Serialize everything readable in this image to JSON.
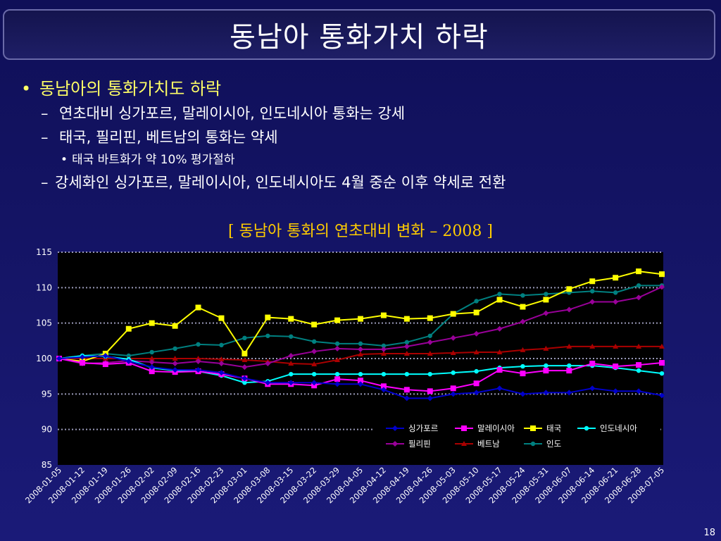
{
  "slide": {
    "title": "동남아 통화가치 하락",
    "bullet1": "동남아의 통화가치도 하락",
    "bullet1_marker": "•",
    "sub1": "연초대비 싱가포르, 말레이시아, 인도네시아 통화는 강세",
    "sub2": "태국, 필리핀, 베트남의 통화는 약세",
    "sub2_1": "태국 바트화가 약 10% 평가절하",
    "sub3": "강세화인 싱가포르, 말레이시아, 인도네시아도 4월 중순 이후 약세로 전환",
    "dash": "–",
    "dot": "•",
    "chart_caption": "[ 동남아 통화의 연초대비 변화 – 2008 ]",
    "page_number": "18"
  },
  "chart_data": {
    "type": "line",
    "categories": [
      "2008-01-05",
      "2008-01-12",
      "2008-01-19",
      "2008-01-26",
      "2008-02-02",
      "2008-02-09",
      "2008-02-16",
      "2008-02-23",
      "2008-03-01",
      "2008-03-08",
      "2008-03-15",
      "2008-03-22",
      "2008-03-29",
      "2008-04-05",
      "2008-04-12",
      "2008-04-19",
      "2008-04-26",
      "2008-05-03",
      "2008-05-10",
      "2008-05-17",
      "2008-05-24",
      "2008-05-31",
      "2008-06-07",
      "2008-06-14",
      "2008-06-21",
      "2008-06-28",
      "2008-07-05"
    ],
    "ylim": [
      85,
      115
    ],
    "yticks": [
      85,
      90,
      95,
      100,
      105,
      110,
      115
    ],
    "grid": "dotted horizontal",
    "legend_position": "bottom-right inside",
    "series": [
      {
        "name": "싱가포르",
        "color": "#0000cc",
        "marker": "diamond",
        "values": [
          100,
          100.2,
          100.4,
          99.6,
          98.8,
          98.4,
          98.4,
          98.0,
          97.2,
          96.6,
          96.6,
          96.6,
          96.4,
          96.4,
          95.6,
          94.4,
          94.4,
          95.0,
          95.2,
          95.8,
          95.0,
          95.2,
          95.2,
          95.8,
          95.4,
          95.4,
          94.8
        ]
      },
      {
        "name": "말레이시아",
        "color": "#ff00ff",
        "marker": "square",
        "values": [
          100,
          99.4,
          99.2,
          99.4,
          98.2,
          98.1,
          98.2,
          97.8,
          97.2,
          96.4,
          96.4,
          96.2,
          97.1,
          96.9,
          96.1,
          95.6,
          95.4,
          95.8,
          96.5,
          98.4,
          97.9,
          98.3,
          98.3,
          99.3,
          98.9,
          99.1,
          99.4
        ]
      },
      {
        "name": "태국",
        "color": "#ffff00",
        "marker": "square",
        "values": [
          100,
          99.6,
          100.7,
          104.2,
          105.0,
          104.6,
          107.2,
          105.7,
          100.7,
          105.8,
          105.6,
          104.8,
          105.4,
          105.6,
          106.1,
          105.6,
          105.7,
          106.3,
          106.5,
          108.3,
          107.3,
          108.3,
          109.8,
          110.9,
          111.4,
          112.3,
          111.9
        ]
      },
      {
        "name": "인도네시아",
        "color": "#00ffff",
        "marker": "circle",
        "values": [
          100,
          100.4,
          100.3,
          99.9,
          98.7,
          98.3,
          98.2,
          97.6,
          96.6,
          96.8,
          97.8,
          97.8,
          97.8,
          97.8,
          97.8,
          97.8,
          97.8,
          98.0,
          98.2,
          98.7,
          98.9,
          99.0,
          99.0,
          99.0,
          98.7,
          98.3,
          97.9
        ]
      },
      {
        "name": "필리핀",
        "color": "#990099",
        "marker": "diamond",
        "values": [
          100,
          99.3,
          99.4,
          99.7,
          99.5,
          99.3,
          99.6,
          99.3,
          98.8,
          99.3,
          100.4,
          101.0,
          101.4,
          101.3,
          101.3,
          101.7,
          102.3,
          102.9,
          103.5,
          104.2,
          105.2,
          106.4,
          106.9,
          108.0,
          108.0,
          108.6,
          110.1
        ]
      },
      {
        "name": "베트남",
        "color": "#aa0000",
        "marker": "triangle",
        "values": [
          100,
          100.0,
          100.0,
          100.0,
          100.0,
          100.0,
          100.0,
          99.9,
          99.8,
          99.6,
          99.3,
          99.2,
          99.8,
          100.6,
          100.7,
          100.7,
          100.7,
          100.8,
          100.9,
          100.9,
          101.2,
          101.4,
          101.7,
          101.7,
          101.7,
          101.7,
          101.7
        ]
      },
      {
        "name": "인도",
        "color": "#008080",
        "marker": "circle",
        "values": [
          100,
          100.4,
          100.7,
          100.4,
          100.9,
          101.4,
          102.0,
          101.9,
          102.9,
          103.2,
          103.1,
          102.4,
          102.1,
          102.1,
          101.8,
          102.3,
          103.2,
          106.3,
          108.1,
          109.1,
          108.9,
          109.1,
          109.3,
          109.5,
          109.3,
          110.3,
          110.3
        ]
      }
    ]
  }
}
